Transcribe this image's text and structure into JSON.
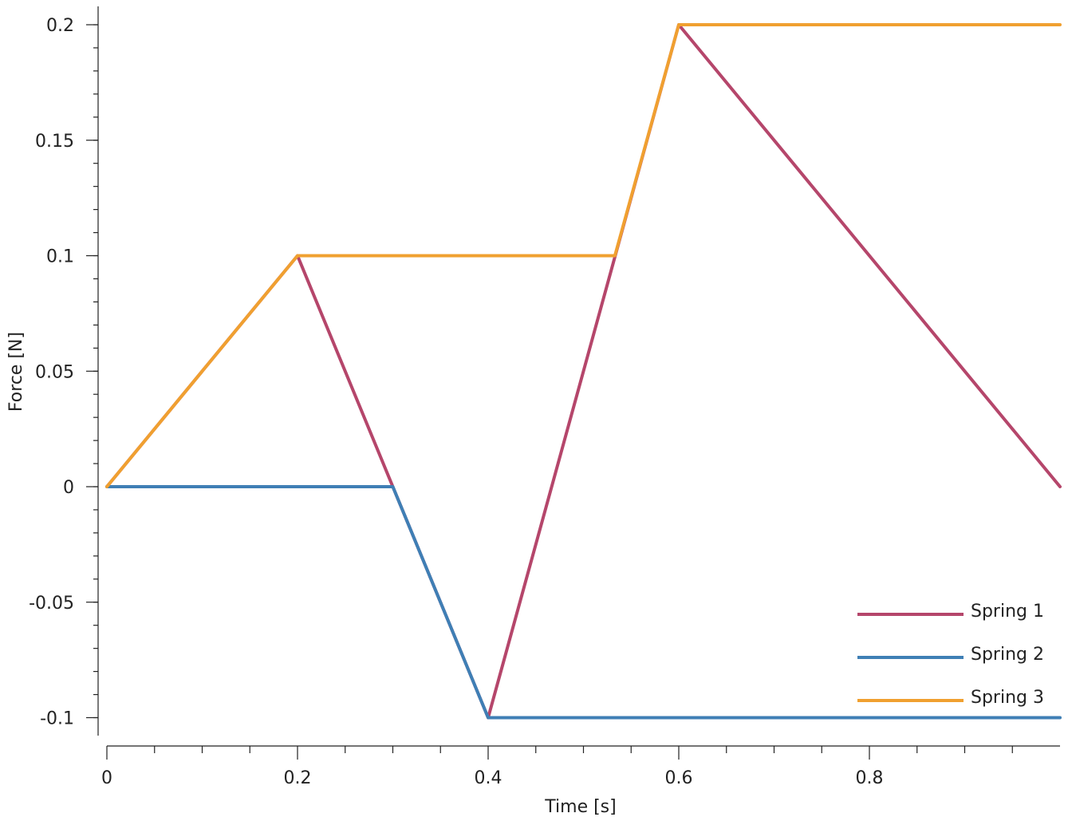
{
  "chart_data": {
    "type": "line",
    "xlabel": "Time [s]",
    "ylabel": "Force [N]",
    "xlim": [
      0,
      1.0
    ],
    "ylim": [
      -0.1,
      0.2
    ],
    "grid": false,
    "legend_position": "bottom-right",
    "x_ticks": [
      {
        "value": 0,
        "label": "0"
      },
      {
        "value": 0.2,
        "label": "0.2"
      },
      {
        "value": 0.4,
        "label": "0.4"
      },
      {
        "value": 0.6,
        "label": "0.6"
      },
      {
        "value": 0.8,
        "label": "0.8"
      }
    ],
    "y_ticks": [
      {
        "value": 0.2,
        "label": "0.2"
      },
      {
        "value": 0.15,
        "label": "0.15"
      },
      {
        "value": 0.1,
        "label": "0.1"
      },
      {
        "value": 0.05,
        "label": "0.05"
      },
      {
        "value": 0,
        "label": "0"
      },
      {
        "value": -0.05,
        "label": "-0.05"
      },
      {
        "value": -0.1,
        "label": "-0.1"
      }
    ],
    "series": [
      {
        "name": "Spring 1",
        "color": "#b5466b",
        "points": [
          [
            0,
            0
          ],
          [
            0.2,
            0.1
          ],
          [
            0.3,
            0
          ],
          [
            0.4,
            -0.1
          ],
          [
            0.6,
            0.2
          ],
          [
            1.0,
            0
          ]
        ]
      },
      {
        "name": "Spring 2",
        "color": "#3f7fb5",
        "points": [
          [
            0,
            0
          ],
          [
            0.3,
            0
          ],
          [
            0.4,
            -0.1
          ],
          [
            1.0,
            -0.1
          ]
        ]
      },
      {
        "name": "Spring 3",
        "color": "#f0a030",
        "points": [
          [
            0,
            0
          ],
          [
            0.2,
            0.1
          ],
          [
            0.533,
            0.1
          ],
          [
            0.6,
            0.2
          ],
          [
            1.0,
            0.2
          ]
        ]
      }
    ]
  }
}
